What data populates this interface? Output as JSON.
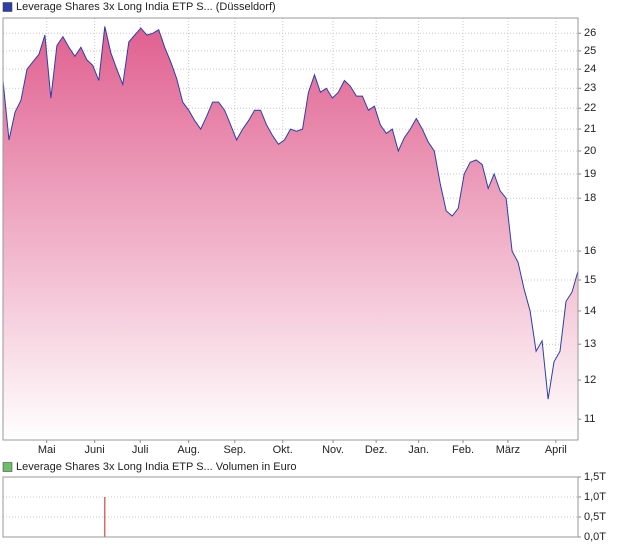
{
  "chart_data": [
    {
      "type": "line",
      "log_scale": true,
      "grid": true,
      "series": [
        {
          "name": "Leverage Shares 3x Long India ETP S... (Düsseldorf)",
          "color": "#2b3fa6",
          "fill_color": "#e0608f",
          "values": [
            23.4,
            20.5,
            21.8,
            22.4,
            24.0,
            24.4,
            24.8,
            25.9,
            22.5,
            25.3,
            25.8,
            25.2,
            24.7,
            25.2,
            24.5,
            24.2,
            23.4,
            26.4,
            24.9,
            24.0,
            23.2,
            25.5,
            25.9,
            26.3,
            25.9,
            26.0,
            26.2,
            25.2,
            24.4,
            23.5,
            22.3,
            21.9,
            21.4,
            21.0,
            21.6,
            22.3,
            22.3,
            21.9,
            21.2,
            20.5,
            21.0,
            21.4,
            21.9,
            21.9,
            21.2,
            20.7,
            20.3,
            20.5,
            21.0,
            20.9,
            21.0,
            22.8,
            23.7,
            22.8,
            23.0,
            22.5,
            22.8,
            23.4,
            23.1,
            22.6,
            22.6,
            21.9,
            22.1,
            21.2,
            20.8,
            21.0,
            20.0,
            20.6,
            21.0,
            21.5,
            21.0,
            20.4,
            20.0,
            18.6,
            17.5,
            17.3,
            17.6,
            19.0,
            19.5,
            19.6,
            19.4,
            18.4,
            19.0,
            18.3,
            18.0,
            16.0,
            15.6,
            14.7,
            14.0,
            12.8,
            13.1,
            11.5,
            12.5,
            12.8,
            14.3,
            14.6,
            15.3
          ]
        }
      ],
      "xlim": [
        0,
        96
      ],
      "xticks": [
        {
          "value": 7.3,
          "label": "Mai"
        },
        {
          "value": 15.3,
          "label": "Juni"
        },
        {
          "value": 22.9,
          "label": "Juli"
        },
        {
          "value": 31.0,
          "label": "Aug."
        },
        {
          "value": 38.7,
          "label": "Sep."
        },
        {
          "value": 46.7,
          "label": "Okt."
        },
        {
          "value": 55.1,
          "label": "Nov."
        },
        {
          "value": 62.3,
          "label": "Dez."
        },
        {
          "value": 69.4,
          "label": "Jan."
        },
        {
          "value": 76.8,
          "label": "Feb."
        },
        {
          "value": 84.3,
          "label": "März"
        },
        {
          "value": 92.3,
          "label": "April"
        }
      ],
      "ylim": [
        10.5,
        26.9
      ],
      "yticks": [
        11,
        12,
        13,
        14,
        15,
        16,
        18,
        19,
        20,
        21,
        22,
        23,
        24,
        25,
        26
      ]
    },
    {
      "type": "bar",
      "grid": true,
      "series": [
        {
          "name": "Leverage Shares 3x Long India ETP S... Volumen in Euro",
          "color": "#cc2222",
          "legend_color": "#6cc06c",
          "values": [
            0,
            0,
            0,
            0,
            0,
            0,
            0,
            0,
            0,
            0,
            0,
            0,
            0,
            0,
            0,
            0,
            0,
            1.0,
            0,
            0,
            0,
            0,
            0,
            0,
            0,
            0,
            0,
            0,
            0,
            0,
            0,
            0,
            0,
            0,
            0,
            0,
            0,
            0,
            0,
            0,
            0,
            0,
            0,
            0,
            0,
            0,
            0,
            0,
            0,
            0,
            0,
            0,
            0,
            0,
            0,
            0,
            0,
            0,
            0,
            0,
            0,
            0,
            0,
            0,
            0,
            0,
            0,
            0,
            0,
            0,
            0,
            0,
            0,
            0,
            0,
            0,
            0,
            0,
            0,
            0,
            0,
            0,
            0,
            0,
            0,
            0,
            0,
            0,
            0,
            0,
            0,
            0,
            0,
            0,
            0,
            0,
            0
          ]
        }
      ],
      "xlim": [
        0,
        96
      ],
      "ylim": [
        0,
        1.5
      ],
      "yticks": [
        {
          "value": 0,
          "label": "0,0T"
        },
        {
          "value": 0.5,
          "label": "0,5T"
        },
        {
          "value": 1.0,
          "label": "1,0T"
        },
        {
          "value": 1.5,
          "label": "1,5T"
        }
      ]
    }
  ]
}
